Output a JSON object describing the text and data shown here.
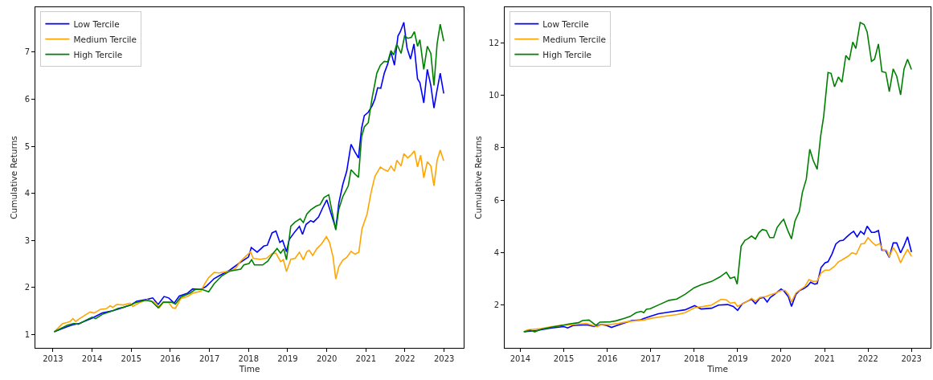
{
  "chart_data": [
    {
      "type": "line",
      "xlabel": "Time",
      "ylabel": "Cumulative Returns",
      "xlim": [
        2012.55,
        2023.5
      ],
      "xticks": [
        2013,
        2014,
        2015,
        2016,
        2017,
        2018,
        2019,
        2020,
        2021,
        2022,
        2023
      ],
      "ylim": [
        0.72,
        7.95
      ],
      "yticks": [
        1,
        2,
        3,
        4,
        5,
        6,
        7
      ],
      "legend": "top left",
      "line_style": "solid",
      "series": [
        {
          "name": "Low Tercile",
          "color": "#0000ff",
          "x": [
            2013.03,
            2013.37,
            2013.51,
            2013.68,
            2014.0,
            2014.26,
            2014.53,
            2014.73,
            2014.99,
            2015.14,
            2015.41,
            2015.55,
            2015.69,
            2015.84,
            2015.96,
            2016.1,
            2016.23,
            2016.44,
            2016.57,
            2016.78,
            2016.91,
            2017.12,
            2017.25,
            2017.52,
            2017.8,
            2018.0,
            2018.07,
            2018.22,
            2018.39,
            2018.48,
            2018.6,
            2018.7,
            2018.8,
            2018.87,
            2018.97,
            2019.04,
            2019.19,
            2019.3,
            2019.38,
            2019.47,
            2019.59,
            2019.66,
            2019.79,
            2019.9,
            2020.0,
            2020.07,
            2020.23,
            2020.31,
            2020.41,
            2020.51,
            2020.62,
            2020.72,
            2020.81,
            2020.89,
            2020.96,
            2021.06,
            2021.16,
            2021.23,
            2021.3,
            2021.38,
            2021.47,
            2021.56,
            2021.64,
            2021.73,
            2021.82,
            2021.88,
            2021.97,
            2022.05,
            2022.14,
            2022.23,
            2022.32,
            2022.38,
            2022.48,
            2022.57,
            2022.66,
            2022.74,
            2022.81,
            2022.9,
            2022.99
          ],
          "values": [
            1.06,
            1.17,
            1.21,
            1.24,
            1.35,
            1.46,
            1.51,
            1.56,
            1.63,
            1.71,
            1.75,
            1.78,
            1.64,
            1.81,
            1.78,
            1.67,
            1.82,
            1.88,
            1.97,
            1.96,
            2.02,
            2.19,
            2.25,
            2.37,
            2.54,
            2.65,
            2.85,
            2.75,
            2.88,
            2.9,
            3.16,
            3.2,
            2.96,
            3.0,
            2.76,
            3.02,
            3.19,
            3.3,
            3.13,
            3.34,
            3.42,
            3.39,
            3.5,
            3.7,
            3.86,
            3.68,
            3.25,
            3.8,
            4.19,
            4.47,
            5.04,
            4.88,
            4.75,
            5.38,
            5.65,
            5.72,
            5.86,
            6.0,
            6.24,
            6.23,
            6.55,
            6.75,
            7.0,
            6.72,
            7.34,
            7.43,
            7.63,
            7.09,
            6.85,
            7.17,
            6.43,
            6.35,
            5.92,
            6.63,
            6.29,
            5.81,
            6.15,
            6.55,
            6.12
          ]
        },
        {
          "name": "Medium Tercile",
          "color": "#ffa500",
          "x": [
            2013.03,
            2013.24,
            2013.37,
            2013.44,
            2013.51,
            2013.58,
            2013.68,
            2013.85,
            2013.95,
            2014.05,
            2014.22,
            2014.36,
            2014.46,
            2014.53,
            2014.63,
            2014.8,
            2014.97,
            2015.04,
            2015.21,
            2015.41,
            2015.62,
            2015.72,
            2015.82,
            2015.96,
            2016.06,
            2016.13,
            2016.27,
            2016.44,
            2016.57,
            2016.78,
            2016.88,
            2016.98,
            2017.12,
            2017.25,
            2017.52,
            2017.66,
            2017.8,
            2017.91,
            2018.05,
            2018.12,
            2018.29,
            2018.46,
            2018.6,
            2018.7,
            2018.82,
            2018.89,
            2018.97,
            2019.08,
            2019.19,
            2019.3,
            2019.4,
            2019.49,
            2019.55,
            2019.64,
            2019.74,
            2019.86,
            2019.99,
            2020.07,
            2020.16,
            2020.23,
            2020.31,
            2020.41,
            2020.51,
            2020.62,
            2020.72,
            2020.82,
            2020.9,
            2021.03,
            2021.13,
            2021.23,
            2021.37,
            2021.47,
            2021.56,
            2021.64,
            2021.73,
            2021.79,
            2021.9,
            2021.97,
            2022.07,
            2022.16,
            2022.24,
            2022.32,
            2022.4,
            2022.48,
            2022.57,
            2022.66,
            2022.74,
            2022.82,
            2022.9,
            2022.99
          ],
          "values": [
            1.06,
            1.23,
            1.26,
            1.28,
            1.34,
            1.28,
            1.34,
            1.43,
            1.48,
            1.46,
            1.54,
            1.55,
            1.61,
            1.58,
            1.64,
            1.63,
            1.67,
            1.6,
            1.68,
            1.74,
            1.68,
            1.57,
            1.69,
            1.68,
            1.57,
            1.56,
            1.77,
            1.81,
            1.88,
            1.92,
            2.08,
            2.21,
            2.32,
            2.31,
            2.35,
            2.4,
            2.56,
            2.65,
            2.76,
            2.62,
            2.6,
            2.62,
            2.72,
            2.73,
            2.55,
            2.59,
            2.34,
            2.6,
            2.62,
            2.75,
            2.59,
            2.76,
            2.79,
            2.68,
            2.82,
            2.92,
            3.08,
            2.96,
            2.65,
            2.18,
            2.45,
            2.58,
            2.64,
            2.77,
            2.71,
            2.75,
            3.25,
            3.56,
            4.01,
            4.36,
            4.56,
            4.5,
            4.47,
            4.58,
            4.47,
            4.7,
            4.58,
            4.84,
            4.75,
            4.82,
            4.9,
            4.56,
            4.81,
            4.33,
            4.67,
            4.58,
            4.16,
            4.7,
            4.92,
            4.69
          ]
        },
        {
          "name": "High Tercile",
          "color": "#008000",
          "x": [
            2013.03,
            2013.37,
            2013.54,
            2013.65,
            2013.85,
            2014.0,
            2014.09,
            2014.26,
            2014.53,
            2014.67,
            2014.8,
            2014.99,
            2015.11,
            2015.35,
            2015.52,
            2015.69,
            2015.82,
            2016.03,
            2016.13,
            2016.27,
            2016.5,
            2016.64,
            2016.81,
            2016.98,
            2017.12,
            2017.32,
            2017.52,
            2017.8,
            2017.88,
            2018.01,
            2018.08,
            2018.15,
            2018.36,
            2018.49,
            2018.63,
            2018.73,
            2018.82,
            2018.9,
            2018.97,
            2019.08,
            2019.19,
            2019.32,
            2019.4,
            2019.49,
            2019.59,
            2019.73,
            2019.83,
            2019.93,
            2020.05,
            2020.23,
            2020.31,
            2020.41,
            2020.55,
            2020.62,
            2020.72,
            2020.81,
            2020.89,
            2020.96,
            2021.06,
            2021.16,
            2021.28,
            2021.37,
            2021.47,
            2021.56,
            2021.64,
            2021.71,
            2021.79,
            2021.9,
            2021.99,
            2022.07,
            2022.16,
            2022.24,
            2022.32,
            2022.38,
            2022.48,
            2022.57,
            2022.66,
            2022.74,
            2022.82,
            2022.9,
            2022.99
          ],
          "values": [
            1.06,
            1.2,
            1.24,
            1.22,
            1.31,
            1.37,
            1.34,
            1.43,
            1.51,
            1.56,
            1.58,
            1.63,
            1.68,
            1.73,
            1.71,
            1.57,
            1.69,
            1.69,
            1.65,
            1.8,
            1.88,
            1.96,
            1.96,
            1.91,
            2.08,
            2.25,
            2.35,
            2.39,
            2.48,
            2.51,
            2.59,
            2.48,
            2.48,
            2.56,
            2.73,
            2.83,
            2.73,
            2.82,
            2.59,
            3.3,
            3.39,
            3.46,
            3.38,
            3.56,
            3.65,
            3.73,
            3.76,
            3.91,
            3.97,
            3.22,
            3.67,
            3.93,
            4.16,
            4.5,
            4.41,
            4.34,
            5.2,
            5.41,
            5.5,
            6.03,
            6.55,
            6.72,
            6.8,
            6.79,
            7.03,
            6.94,
            7.17,
            6.97,
            7.34,
            7.29,
            7.31,
            7.43,
            7.12,
            7.26,
            6.63,
            7.12,
            6.97,
            6.29,
            7.17,
            7.59,
            7.23
          ]
        }
      ]
    },
    {
      "type": "line",
      "xlabel": "Time",
      "ylabel": "Cumulative Returns",
      "xlim": [
        2013.64,
        2023.44
      ],
      "xticks": [
        2014,
        2015,
        2016,
        2017,
        2018,
        2019,
        2020,
        2021,
        2022,
        2023
      ],
      "ylim": [
        0.37,
        13.35
      ],
      "yticks": [
        2,
        4,
        6,
        8,
        10,
        12
      ],
      "legend": "top left",
      "line_style": "solid",
      "series": [
        {
          "name": "Low Tercile",
          "color": "#0000ff",
          "x": [
            2014.08,
            2014.36,
            2014.72,
            2015.0,
            2015.09,
            2015.21,
            2015.52,
            2015.71,
            2015.86,
            2015.98,
            2016.1,
            2016.23,
            2016.41,
            2016.56,
            2016.75,
            2016.84,
            2016.99,
            2017.18,
            2017.48,
            2017.79,
            2018.01,
            2018.16,
            2018.4,
            2018.56,
            2018.77,
            2018.9,
            2019.0,
            2019.11,
            2019.23,
            2019.32,
            2019.41,
            2019.51,
            2019.6,
            2019.68,
            2019.75,
            2019.85,
            2019.94,
            2020.0,
            2020.07,
            2020.17,
            2020.24,
            2020.34,
            2020.43,
            2020.52,
            2020.61,
            2020.68,
            2020.77,
            2020.83,
            2020.92,
            2021.01,
            2021.08,
            2021.17,
            2021.26,
            2021.35,
            2021.43,
            2021.51,
            2021.6,
            2021.67,
            2021.75,
            2021.83,
            2021.91,
            2021.98,
            2022.08,
            2022.15,
            2022.24,
            2022.32,
            2022.4,
            2022.49,
            2022.58,
            2022.66,
            2022.75,
            2022.83,
            2022.91,
            2023.0
          ],
          "values": [
            0.98,
            1.03,
            1.13,
            1.18,
            1.13,
            1.22,
            1.25,
            1.18,
            1.26,
            1.23,
            1.15,
            1.23,
            1.33,
            1.41,
            1.43,
            1.49,
            1.57,
            1.67,
            1.75,
            1.82,
            1.98,
            1.85,
            1.88,
            2.0,
            2.02,
            1.95,
            1.8,
            2.05,
            2.15,
            2.22,
            2.05,
            2.26,
            2.29,
            2.12,
            2.29,
            2.41,
            2.53,
            2.61,
            2.53,
            2.31,
            1.95,
            2.41,
            2.56,
            2.63,
            2.73,
            2.87,
            2.8,
            2.82,
            3.43,
            3.61,
            3.65,
            3.94,
            4.33,
            4.45,
            4.47,
            4.6,
            4.73,
            4.81,
            4.6,
            4.81,
            4.7,
            5.01,
            4.77,
            4.77,
            4.84,
            4.09,
            4.09,
            3.82,
            4.37,
            4.37,
            3.99,
            4.27,
            4.6,
            4.02
          ]
        },
        {
          "name": "Medium Tercile",
          "color": "#ffa500",
          "x": [
            2014.08,
            2014.17,
            2014.48,
            2014.72,
            2014.97,
            2015.21,
            2015.52,
            2015.67,
            2015.77,
            2015.86,
            2016.07,
            2016.26,
            2016.44,
            2016.63,
            2016.84,
            2016.99,
            2017.3,
            2017.61,
            2017.79,
            2018.01,
            2018.22,
            2018.4,
            2018.62,
            2018.74,
            2018.83,
            2018.93,
            2019.0,
            2019.11,
            2019.23,
            2019.32,
            2019.41,
            2019.51,
            2019.66,
            2019.75,
            2019.88,
            2020.0,
            2020.09,
            2020.17,
            2020.24,
            2020.34,
            2020.46,
            2020.55,
            2020.64,
            2020.74,
            2020.83,
            2020.92,
            2021.01,
            2021.11,
            2021.23,
            2021.32,
            2021.41,
            2021.54,
            2021.63,
            2021.73,
            2021.84,
            2021.92,
            2022.0,
            2022.09,
            2022.18,
            2022.27,
            2022.34,
            2022.43,
            2022.49,
            2022.58,
            2022.66,
            2022.75,
            2022.83,
            2022.91,
            2023.0
          ],
          "values": [
            0.98,
            1.06,
            1.1,
            1.18,
            1.23,
            1.26,
            1.3,
            1.23,
            1.18,
            1.26,
            1.26,
            1.3,
            1.36,
            1.4,
            1.43,
            1.49,
            1.57,
            1.64,
            1.71,
            1.9,
            1.95,
            2.0,
            2.22,
            2.2,
            2.07,
            2.1,
            1.95,
            2.05,
            2.15,
            2.26,
            2.15,
            2.29,
            2.33,
            2.39,
            2.46,
            2.56,
            2.56,
            2.41,
            2.12,
            2.46,
            2.61,
            2.71,
            2.97,
            2.9,
            2.92,
            3.22,
            3.33,
            3.33,
            3.48,
            3.65,
            3.73,
            3.86,
            3.99,
            3.94,
            4.33,
            4.35,
            4.57,
            4.4,
            4.27,
            4.35,
            4.09,
            4.09,
            3.84,
            4.19,
            3.99,
            3.61,
            3.89,
            4.12,
            3.86
          ]
        },
        {
          "name": "High Tercile",
          "color": "#008000",
          "x": [
            2014.08,
            2014.23,
            2014.33,
            2014.48,
            2014.72,
            2014.97,
            2015.12,
            2015.34,
            2015.43,
            2015.58,
            2015.74,
            2015.83,
            2016.07,
            2016.2,
            2016.38,
            2016.53,
            2016.66,
            2016.78,
            2016.84,
            2016.9,
            2016.99,
            2017.24,
            2017.42,
            2017.6,
            2017.79,
            2018.0,
            2018.16,
            2018.4,
            2018.59,
            2018.74,
            2018.83,
            2018.93,
            2018.99,
            2019.08,
            2019.17,
            2019.23,
            2019.32,
            2019.41,
            2019.49,
            2019.57,
            2019.66,
            2019.74,
            2019.83,
            2019.91,
            2020.0,
            2020.06,
            2020.15,
            2020.24,
            2020.32,
            2020.42,
            2020.49,
            2020.58,
            2020.66,
            2020.74,
            2020.83,
            2020.91,
            2020.98,
            2021.08,
            2021.15,
            2021.23,
            2021.32,
            2021.4,
            2021.49,
            2021.57,
            2021.65,
            2021.72,
            2021.82,
            2021.91,
            2021.98,
            2022.08,
            2022.15,
            2022.24,
            2022.32,
            2022.41,
            2022.49,
            2022.58,
            2022.66,
            2022.75,
            2022.83,
            2022.91,
            2023.0
          ],
          "values": [
            0.98,
            1.04,
            0.98,
            1.08,
            1.16,
            1.23,
            1.28,
            1.33,
            1.41,
            1.43,
            1.23,
            1.35,
            1.36,
            1.4,
            1.49,
            1.57,
            1.71,
            1.76,
            1.71,
            1.84,
            1.86,
            2.05,
            2.18,
            2.23,
            2.41,
            2.66,
            2.77,
            2.9,
            3.07,
            3.25,
            3.02,
            3.07,
            2.8,
            4.24,
            4.47,
            4.52,
            4.63,
            4.52,
            4.76,
            4.88,
            4.84,
            4.57,
            4.57,
            4.96,
            5.16,
            5.27,
            4.86,
            4.52,
            5.21,
            5.57,
            6.29,
            6.8,
            7.94,
            7.51,
            7.18,
            8.43,
            9.19,
            10.86,
            10.83,
            10.32,
            10.69,
            10.49,
            11.51,
            11.34,
            12.02,
            11.78,
            12.77,
            12.69,
            12.41,
            11.29,
            11.37,
            11.95,
            10.9,
            10.86,
            10.13,
            11.0,
            10.72,
            10.01,
            11.0,
            11.37,
            10.98
          ]
        }
      ]
    }
  ]
}
